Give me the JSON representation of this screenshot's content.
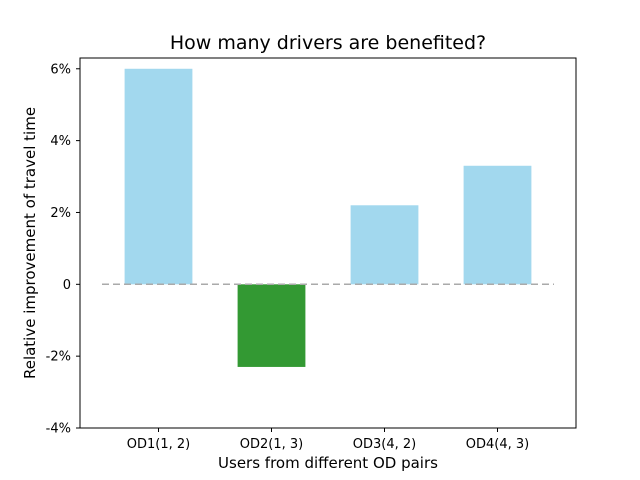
{
  "chart_data": {
    "type": "bar",
    "title": "How many drivers are benefited?",
    "xlabel": "Users from different OD pairs",
    "ylabel": "Relative improvement of travel time",
    "categories": [
      "OD1(1, 2)",
      "OD2(1, 3)",
      "OD3(4, 2)",
      "OD4(4, 3)"
    ],
    "values": [
      6.0,
      -2.3,
      2.2,
      3.3
    ],
    "unit": "%",
    "ylim": [
      -4,
      6.3
    ],
    "yticks": [
      -4,
      -2,
      0,
      2,
      4,
      6
    ],
    "ytick_labels": [
      "-4%",
      "-2%",
      "0",
      "2%",
      "4%",
      "6%"
    ],
    "bar_colors": [
      "#a2d8ee",
      "#339933",
      "#a2d8ee",
      "#a2d8ee"
    ],
    "reference_line": {
      "y": 0,
      "style": "dashed",
      "color": "#aaaaaa"
    },
    "grid": false,
    "legend": "none"
  }
}
